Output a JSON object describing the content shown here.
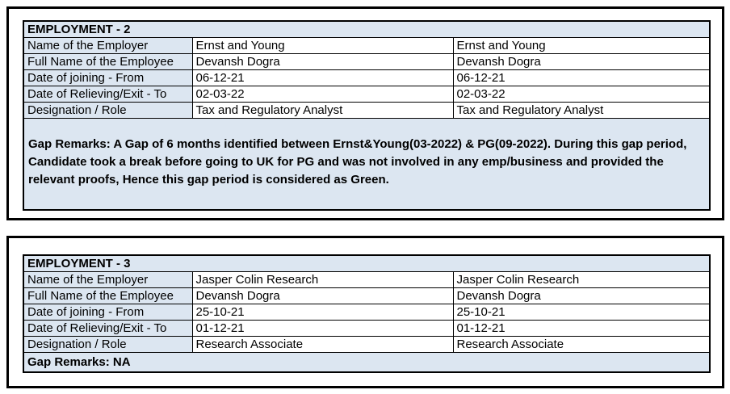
{
  "colors": {
    "cell_fill": "#DCE6F1",
    "border": "#000000",
    "text": "#000000"
  },
  "employment_tables": [
    {
      "title": "EMPLOYMENT - 2",
      "rows": [
        {
          "label": "Name of the Employer",
          "value1": "Ernst and Young",
          "value2": "Ernst and Young"
        },
        {
          "label": "Full Name of the Employee",
          "value1": "Devansh Dogra",
          "value2": "Devansh Dogra"
        },
        {
          "label": "Date of joining - From",
          "value1": "06-12-21",
          "value2": "06-12-21"
        },
        {
          "label": "Date of Relieving/Exit - To",
          "value1": "02-03-22",
          "value2": "02-03-22"
        },
        {
          "label": "Designation / Role",
          "value1": "Tax and Regulatory Analyst",
          "value2": "Tax and Regulatory Analyst"
        }
      ],
      "gap_remarks": "Gap Remarks: A Gap of 6 months identified between Ernst&Young(03-2022) & PG(09-2022). During this gap period, Candidate took a break before going to UK for PG and was not involved in any emp/business and provided the relevant proofs, Hence this gap period is considered as Green."
    },
    {
      "title": "EMPLOYMENT - 3",
      "rows": [
        {
          "label": "Name of the Employer",
          "value1": "Jasper Colin Research",
          "value2": "Jasper Colin Research"
        },
        {
          "label": "Full Name of the Employee",
          "value1": "Devansh Dogra",
          "value2": "Devansh Dogra"
        },
        {
          "label": "Date of joining - From",
          "value1": "25-10-21",
          "value2": "25-10-21"
        },
        {
          "label": "Date of Relieving/Exit - To",
          "value1": "01-12-21",
          "value2": "01-12-21"
        },
        {
          "label": "Designation / Role",
          "value1": "Research Associate",
          "value2": "Research Associate"
        }
      ],
      "gap_remarks": "Gap Remarks: NA"
    }
  ]
}
